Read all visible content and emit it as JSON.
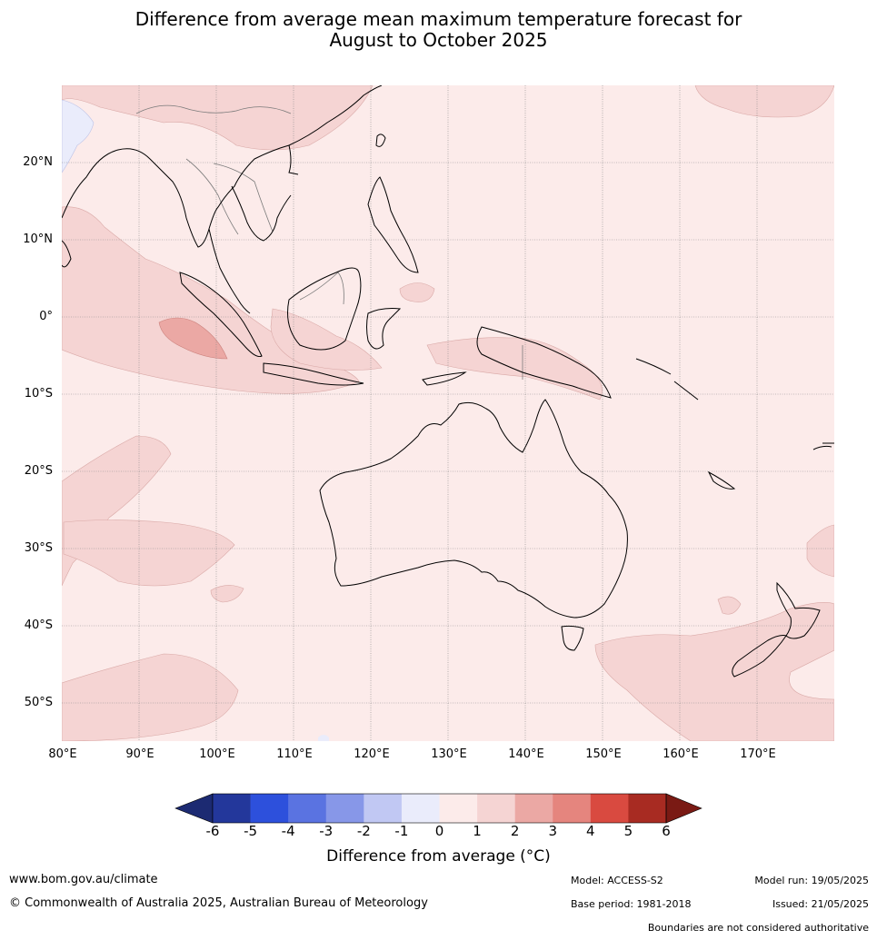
{
  "title_line1": "Difference from average mean maximum temperature forecast for",
  "title_line2": "August to October 2025",
  "lat_labels": [
    "20°N",
    "10°N",
    "0°",
    "10°S",
    "20°S",
    "30°S",
    "40°S",
    "50°S"
  ],
  "lon_labels": [
    "80°E",
    "90°E",
    "100°E",
    "110°E",
    "120°E",
    "130°E",
    "140°E",
    "150°E",
    "160°E",
    "170°E"
  ],
  "colorbar": {
    "ticks": [
      "-6",
      "-5",
      "-4",
      "-3",
      "-2",
      "-1",
      "0",
      "1",
      "2",
      "3",
      "4",
      "5",
      "6"
    ],
    "colors": [
      "#23379b",
      "#2d50dc",
      "#5a73e1",
      "#8797e8",
      "#c1c8f3",
      "#eaecfb",
      "#fcebea",
      "#f5d4d3",
      "#eba8a4",
      "#e5857e",
      "#d94a40",
      "#a82b22"
    ],
    "under_color": "#1c2a72",
    "over_color": "#7a1a14",
    "label": "Difference from average (°C)"
  },
  "footer": {
    "website": "www.bom.gov.au/climate",
    "copyright": "© Commonwealth of Australia 2025, Australian Bureau of Meteorology",
    "model": "Model: ACCESS-S2",
    "base_period": "Base period: 1981-2018",
    "model_run": "Model run: 19/05/2025",
    "issued": "Issued: 21/05/2025",
    "boundaries_note": "Boundaries are not considered authoritative"
  },
  "map_colors": {
    "ocean_base": "#fcebea",
    "warm_1_2": "#f5d4d3",
    "warm_2_3": "#eba8a4",
    "cool_0_m1": "#eaecfb",
    "coastline": "#000000",
    "border": "#7a7a7a"
  }
}
